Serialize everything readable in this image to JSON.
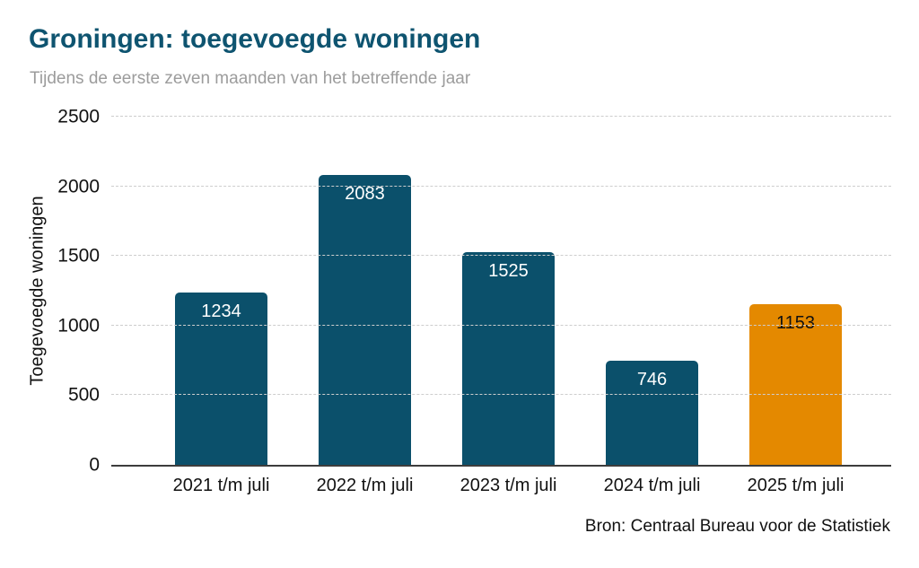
{
  "header": {
    "title": "Groningen: toegevoegde woningen",
    "subtitle": "Tijdens de eerste zeven maanden van het betreffende jaar"
  },
  "source": {
    "label": "Bron: Centraal Bureau voor de Statistiek"
  },
  "colors": {
    "title": "#0e5470",
    "subtitle": "#9c9c9c",
    "bar_teal": "#0b506b",
    "bar_orange": "#e48900",
    "gridline": "#cdcdcd",
    "axis_line": "#3d3d3d",
    "tick_text": "#111111"
  },
  "chart_data": {
    "type": "bar",
    "title": "Groningen: toegevoegde woningen",
    "subtitle": "Tijdens de eerste zeven maanden van het betreffende jaar",
    "categories": [
      "2021 t/m juli",
      "2022 t/m juli",
      "2023 t/m juli",
      "2024 t/m juli",
      "2025 t/m juli"
    ],
    "values": [
      1234,
      2083,
      1525,
      746,
      1153
    ],
    "bar_colors": [
      "#0b506b",
      "#0b506b",
      "#0b506b",
      "#0b506b",
      "#e48900"
    ],
    "value_label_colors": [
      "#ffffff",
      "#ffffff",
      "#ffffff",
      "#ffffff",
      "#111111"
    ],
    "xlabel": "",
    "ylabel": "Toegevoegde woningen",
    "ylim": [
      0,
      2500
    ],
    "yticks": [
      0,
      500,
      1000,
      1500,
      2000,
      2500
    ],
    "grid": "horizontal-dashed",
    "legend": "none",
    "source": "Bron: Centraal Bureau voor de Statistiek"
  }
}
